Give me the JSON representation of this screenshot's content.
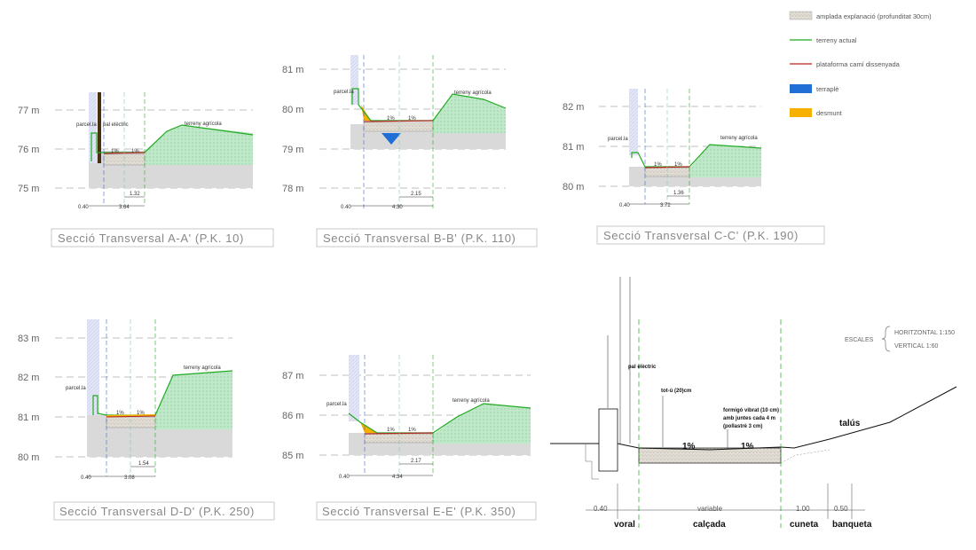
{
  "legend": {
    "items": [
      {
        "label": "amplada explanació (profunditat 30cm)",
        "kind": "hatch",
        "color": "#cfc8bd"
      },
      {
        "label": "terreny actual",
        "kind": "line",
        "color": "#22aa22"
      },
      {
        "label": "plataforma camí dissenyada",
        "kind": "line",
        "color": "#b3261e"
      },
      {
        "label": "terraplè",
        "kind": "fill",
        "color": "#1f6fd6"
      },
      {
        "label": "desmunt",
        "kind": "fill",
        "color": "#f5b000"
      }
    ]
  },
  "scales": {
    "label": "ESCALES",
    "horizontal": "HORITZONTAL 1:150",
    "vertical": "VERTICAL 1:60"
  },
  "sections": [
    {
      "title": "Secció Transversal A-A' (P.K. 10)",
      "elevations": [
        "77 m",
        "76 m",
        "75 m"
      ],
      "labels": {
        "parcel": "parcel.la",
        "pole": "pal elèctric",
        "field": "terreny agrícola"
      },
      "slopes": [
        "1%",
        "1%"
      ],
      "dims": {
        "a": "0.40",
        "b": "3.64",
        "c": "1.32"
      },
      "has_pole": true,
      "has_fill": false
    },
    {
      "title": "Secció Transversal B-B' (P.K. 110)",
      "elevations": [
        "81 m",
        "80 m",
        "79 m",
        "78 m"
      ],
      "labels": {
        "parcel": "parcel.la",
        "field": "terreny agrícola"
      },
      "slopes": [
        "1%",
        "1%"
      ],
      "dims": {
        "a": "0.40",
        "b": "4.30",
        "c": "2.15"
      },
      "has_pole": false,
      "has_fill": true
    },
    {
      "title": "Secció Transversal C-C' (P.K. 190)",
      "elevations": [
        "82 m",
        "81 m",
        "80 m"
      ],
      "labels": {
        "parcel": "parcel.la",
        "field": "terreny agrícola"
      },
      "slopes": [
        "1%",
        "1%"
      ],
      "dims": {
        "a": "0.40",
        "b": "3.72",
        "c": "1.36"
      },
      "has_pole": false,
      "has_fill": false
    },
    {
      "title": "Secció Transversal D-D' (P.K. 250)",
      "elevations": [
        "83 m",
        "82 m",
        "81 m",
        "80 m"
      ],
      "labels": {
        "parcel": "parcel.la",
        "field": "terreny agrícola"
      },
      "slopes": [
        "1%",
        "1%"
      ],
      "dims": {
        "a": "0.40",
        "b": "3.08",
        "c": "1.54"
      },
      "has_pole": false,
      "has_fill": false
    },
    {
      "title": "Secció Transversal E-E' (P.K. 350)",
      "elevations": [
        "87 m",
        "86 m",
        "85 m"
      ],
      "labels": {
        "parcel": "parcel.la",
        "field": "terreny agrícola"
      },
      "slopes": [
        "1%",
        "1%"
      ],
      "dims": {
        "a": "0.40",
        "b": "4.34",
        "c": "2.17"
      },
      "has_pole": false,
      "has_fill": false
    }
  ],
  "detail": {
    "pole": "pal elèctric",
    "base": "tot-ú (20)cm",
    "concrete": [
      "formigó vibrat (10 cm)",
      "amb juntes cada 4 m",
      "(pollastrè 3 cm)"
    ],
    "slope_left": "1%",
    "slope_right": "1%",
    "talus": "talús",
    "dims": [
      "0.40",
      "variable",
      "1.00",
      "0.50"
    ],
    "parts": [
      "voral",
      "calçada",
      "cuneta",
      "banqueta"
    ]
  }
}
